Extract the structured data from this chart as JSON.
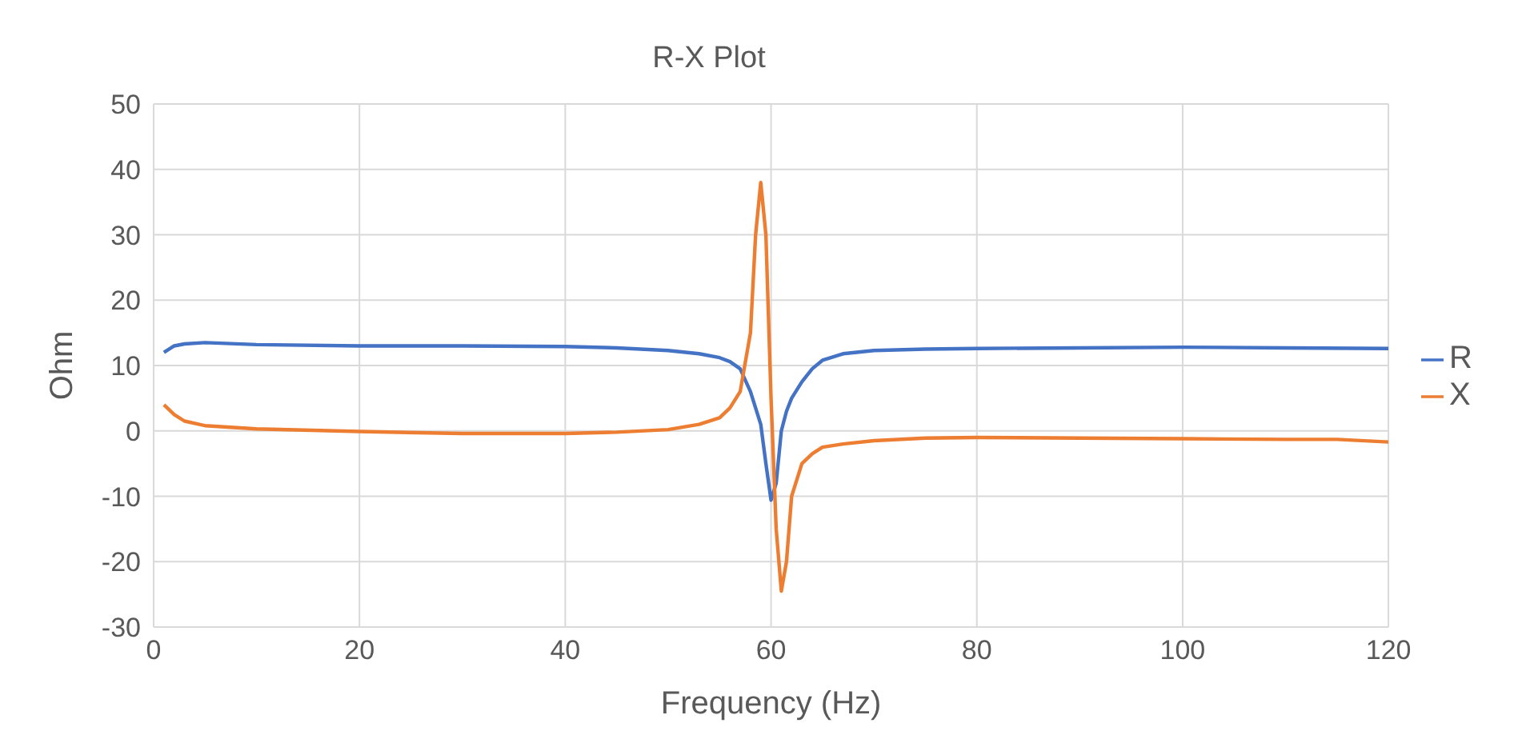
{
  "chart_data": {
    "type": "line",
    "title": "R-X Plot",
    "xlabel": "Frequency (Hz)",
    "ylabel": "Ohm",
    "xlim": [
      0,
      120
    ],
    "xticks": [
      0,
      20,
      40,
      60,
      80,
      100,
      120
    ],
    "ylim": [
      -30,
      50
    ],
    "yticks": [
      -30,
      -20,
      -10,
      0,
      10,
      20,
      30,
      40,
      50
    ],
    "grid": true,
    "legend": "right",
    "marker": "none",
    "line_style": "solid",
    "series": [
      {
        "name": "R",
        "color": "#4472c4",
        "x": [
          1,
          2,
          3,
          5,
          10,
          20,
          30,
          40,
          45,
          50,
          53,
          55,
          56,
          57,
          58,
          59,
          59.5,
          60,
          60.5,
          61,
          61.5,
          62,
          63,
          64,
          65,
          67,
          70,
          75,
          80,
          90,
          100,
          110,
          120
        ],
        "values": [
          12,
          13,
          13.3,
          13.5,
          13.2,
          13,
          13,
          12.9,
          12.7,
          12.3,
          11.8,
          11.2,
          10.6,
          9.5,
          6,
          1,
          -5,
          -10.6,
          -8,
          0,
          3,
          5,
          7.5,
          9.5,
          10.8,
          11.8,
          12.3,
          12.5,
          12.6,
          12.7,
          12.8,
          12.7,
          12.6
        ]
      },
      {
        "name": "X",
        "color": "#ed7d31",
        "x": [
          1,
          2,
          3,
          5,
          10,
          20,
          30,
          40,
          45,
          50,
          53,
          55,
          56,
          57,
          58,
          58.5,
          59,
          59.5,
          60,
          60.5,
          61,
          61.5,
          62,
          63,
          64,
          65,
          67,
          70,
          75,
          80,
          90,
          100,
          110,
          115,
          120
        ],
        "values": [
          4,
          2.5,
          1.5,
          0.8,
          0.3,
          -0.1,
          -0.4,
          -0.4,
          -0.2,
          0.2,
          1,
          2,
          3.5,
          6,
          15,
          30,
          38,
          30,
          5,
          -15,
          -24.5,
          -20,
          -10,
          -5,
          -3.5,
          -2.5,
          -2,
          -1.5,
          -1.1,
          -1,
          -1.1,
          -1.2,
          -1.3,
          -1.3,
          -1.7
        ]
      }
    ]
  }
}
